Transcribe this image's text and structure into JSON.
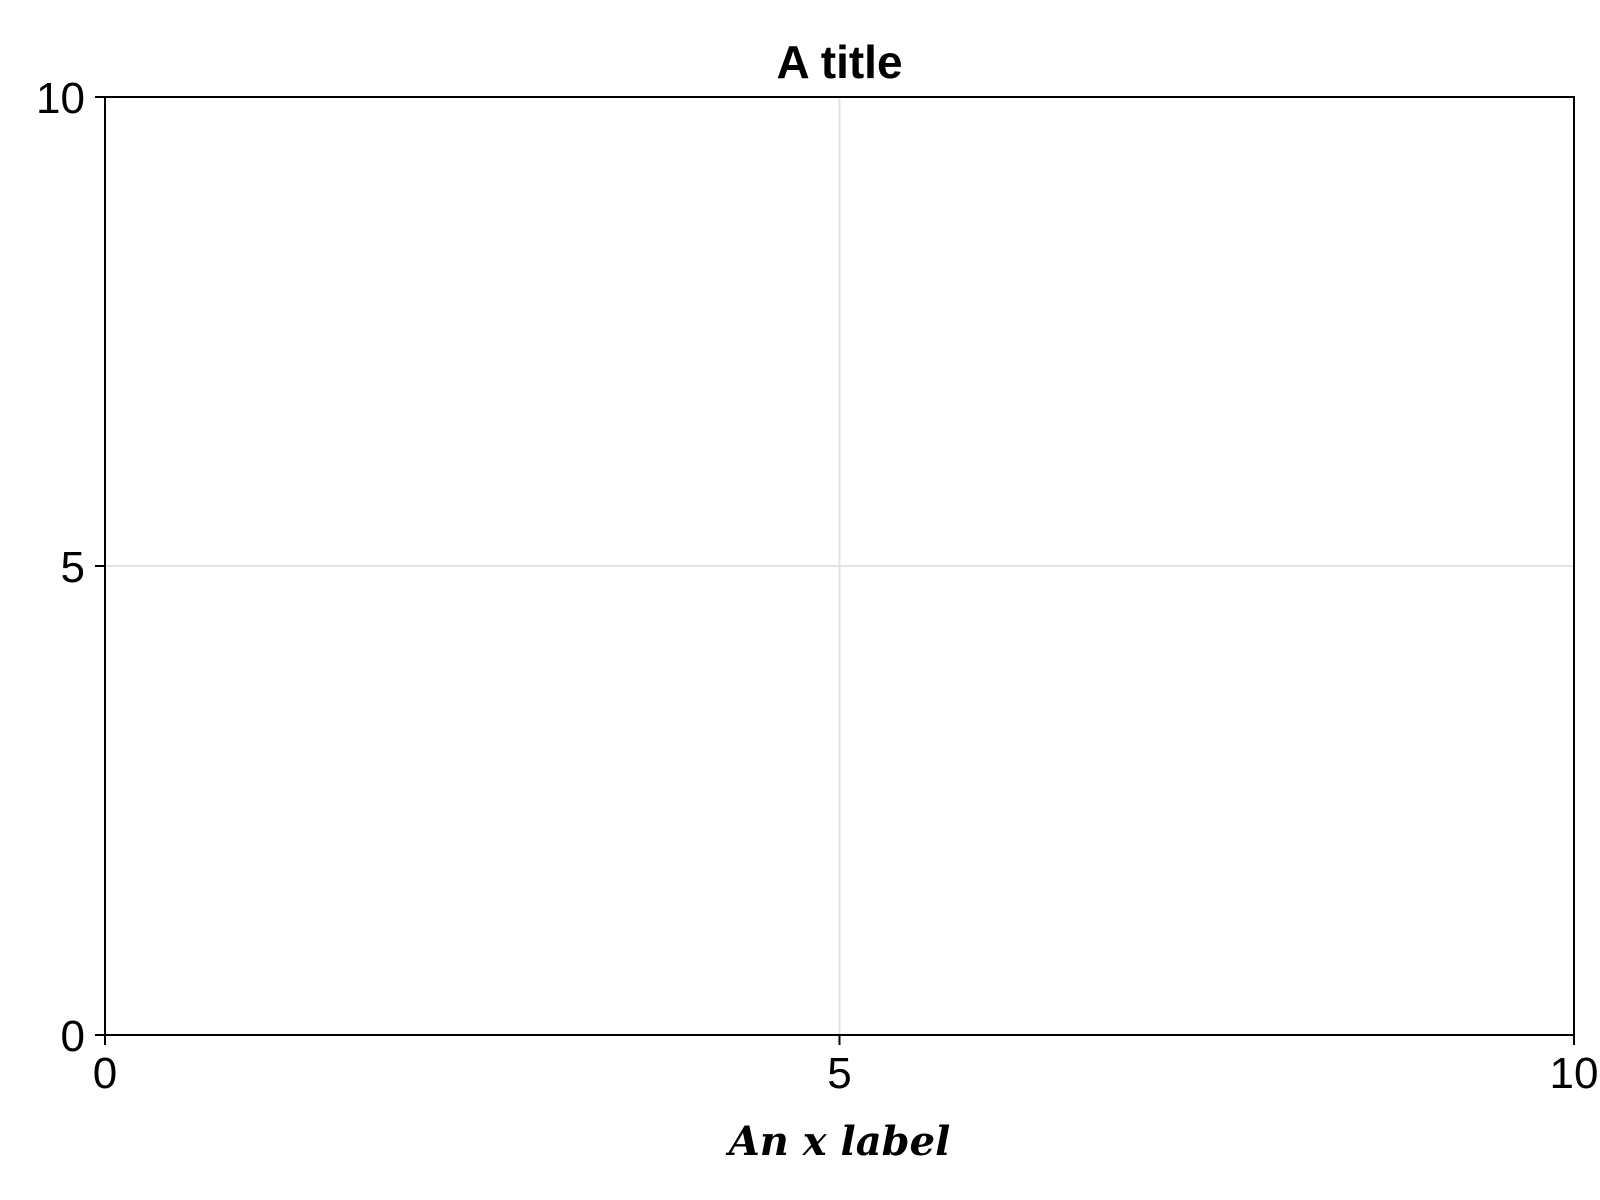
{
  "chart_data": {
    "type": "scatter",
    "title": "A title",
    "xlabel": "An x label",
    "ylabel": "",
    "xlim": [
      0,
      10
    ],
    "ylim": [
      0,
      10
    ],
    "xticks": [
      0,
      5,
      10
    ],
    "yticks": [
      0,
      5,
      10
    ],
    "xtick_labels": [
      "0",
      "5",
      "10"
    ],
    "ytick_labels": [
      "0",
      "5",
      "10"
    ],
    "grid": true,
    "series": [],
    "colors": {
      "grid": "#e2e2e2",
      "axis": "#000000",
      "text": "#000000",
      "background": "#ffffff"
    }
  }
}
